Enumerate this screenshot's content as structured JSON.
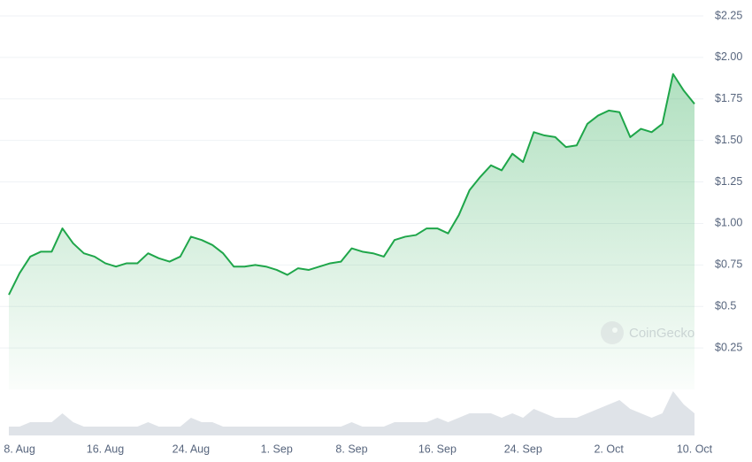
{
  "chart_data": {
    "type": "area",
    "categories": [
      null,
      "8. Aug",
      null,
      null,
      null,
      null,
      null,
      null,
      null,
      "16. Aug",
      null,
      null,
      null,
      null,
      null,
      null,
      null,
      "24. Aug",
      null,
      null,
      null,
      null,
      null,
      null,
      null,
      "1. Sep",
      null,
      null,
      null,
      null,
      null,
      null,
      "8. Sep",
      null,
      null,
      null,
      null,
      null,
      null,
      null,
      "16. Sep",
      null,
      null,
      null,
      null,
      null,
      null,
      null,
      "24. Sep",
      null,
      null,
      null,
      null,
      null,
      null,
      null,
      "2. Oct",
      null,
      null,
      null,
      null,
      null,
      null,
      null,
      "10. Oct"
    ],
    "series": [
      {
        "color": "#1fa64a",
        "values": [
          0.57,
          0.7,
          0.8,
          0.83,
          0.83,
          0.97,
          0.88,
          0.82,
          0.8,
          0.76,
          0.74,
          0.76,
          0.76,
          0.82,
          0.79,
          0.77,
          0.8,
          0.92,
          0.9,
          0.87,
          0.82,
          0.74,
          0.74,
          0.75,
          0.74,
          0.72,
          0.69,
          0.73,
          0.72,
          0.74,
          0.76,
          0.77,
          0.85,
          0.83,
          0.82,
          0.8,
          0.9,
          0.92,
          0.93,
          0.97,
          0.97,
          0.94,
          1.05,
          1.2,
          1.28,
          1.35,
          1.32,
          1.42,
          1.37,
          1.55,
          1.53,
          1.52,
          1.46,
          1.47,
          1.6,
          1.65,
          1.68,
          1.67,
          1.52,
          1.57,
          1.55,
          1.6,
          1.9,
          1.8,
          1.72
        ]
      }
    ],
    "volume": [
      2,
      2,
      3,
      3,
      3,
      5,
      3,
      2,
      2,
      2,
      2,
      2,
      2,
      3,
      2,
      2,
      2,
      4,
      3,
      3,
      2,
      2,
      2,
      2,
      2,
      2,
      2,
      2,
      2,
      2,
      2,
      2,
      3,
      2,
      2,
      2,
      3,
      3,
      3,
      3,
      4,
      3,
      4,
      5,
      5,
      5,
      4,
      5,
      4,
      6,
      5,
      4,
      4,
      4,
      5,
      6,
      7,
      8,
      6,
      5,
      4,
      5,
      10,
      7,
      5
    ],
    "ylim": [
      0,
      2.25
    ],
    "yticks": [
      {
        "value": 0.25,
        "label": "$0.25"
      },
      {
        "value": 0.5,
        "label": "$0.5"
      },
      {
        "value": 0.75,
        "label": "$0.75"
      },
      {
        "value": 1.0,
        "label": "$1.00"
      },
      {
        "value": 1.25,
        "label": "$1.25"
      },
      {
        "value": 1.5,
        "label": "$1.50"
      },
      {
        "value": 1.75,
        "label": "$1.75"
      },
      {
        "value": 2.0,
        "label": "$2.00"
      },
      {
        "value": 2.25,
        "label": "$2.25"
      }
    ],
    "grid": true,
    "watermark": "CoinGecko"
  }
}
